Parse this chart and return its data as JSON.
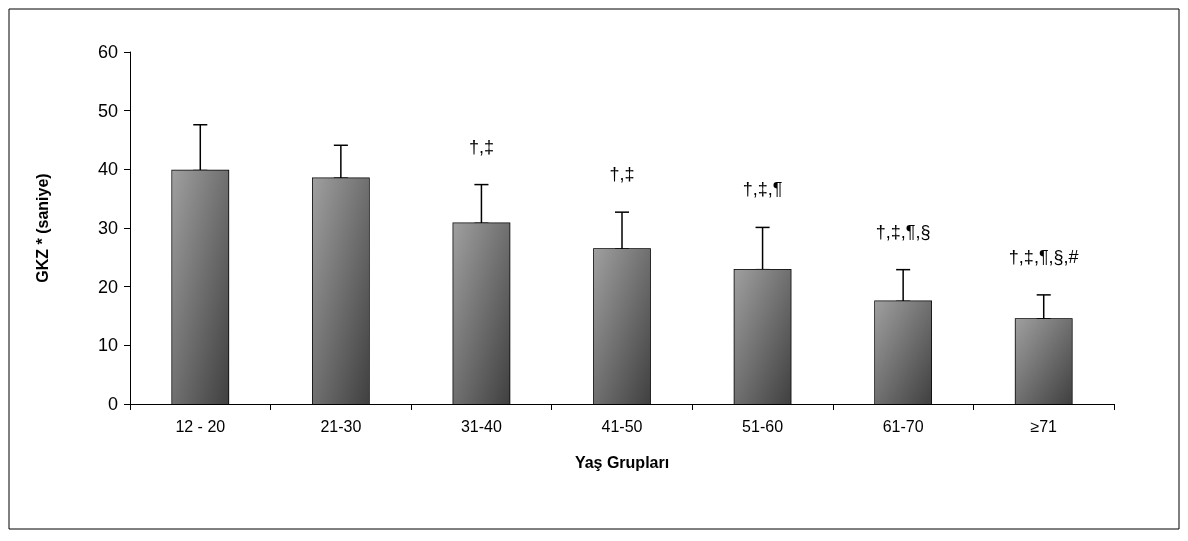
{
  "chart_data": {
    "type": "bar",
    "categories": [
      "12 - 20",
      "21-30",
      "31-40",
      "41-50",
      "51-60",
      "61-70",
      "≥71"
    ],
    "values": [
      39.8,
      38.5,
      30.8,
      26.4,
      22.9,
      17.5,
      14.5
    ],
    "errors": [
      [
        39.8,
        47.6
      ],
      [
        38.5,
        44.1
      ],
      [
        30.8,
        37.4
      ],
      [
        26.4,
        32.7
      ],
      [
        22.9,
        30.1
      ],
      [
        17.5,
        22.9
      ],
      [
        14.5,
        18.6
      ]
    ],
    "color": "#7f7f7f",
    "xlabel": "Yaş Grupları",
    "ylabel": "GKZ * (saniye)",
    "ylim": [
      0,
      60
    ],
    "yticks": [
      0,
      10,
      20,
      30,
      40,
      50,
      60
    ],
    "grid": false,
    "annotations": [
      "†,‡",
      "†,‡",
      "†,‡,¶",
      "†,‡,¶,§",
      "†,‡,¶,§,#"
    ]
  }
}
